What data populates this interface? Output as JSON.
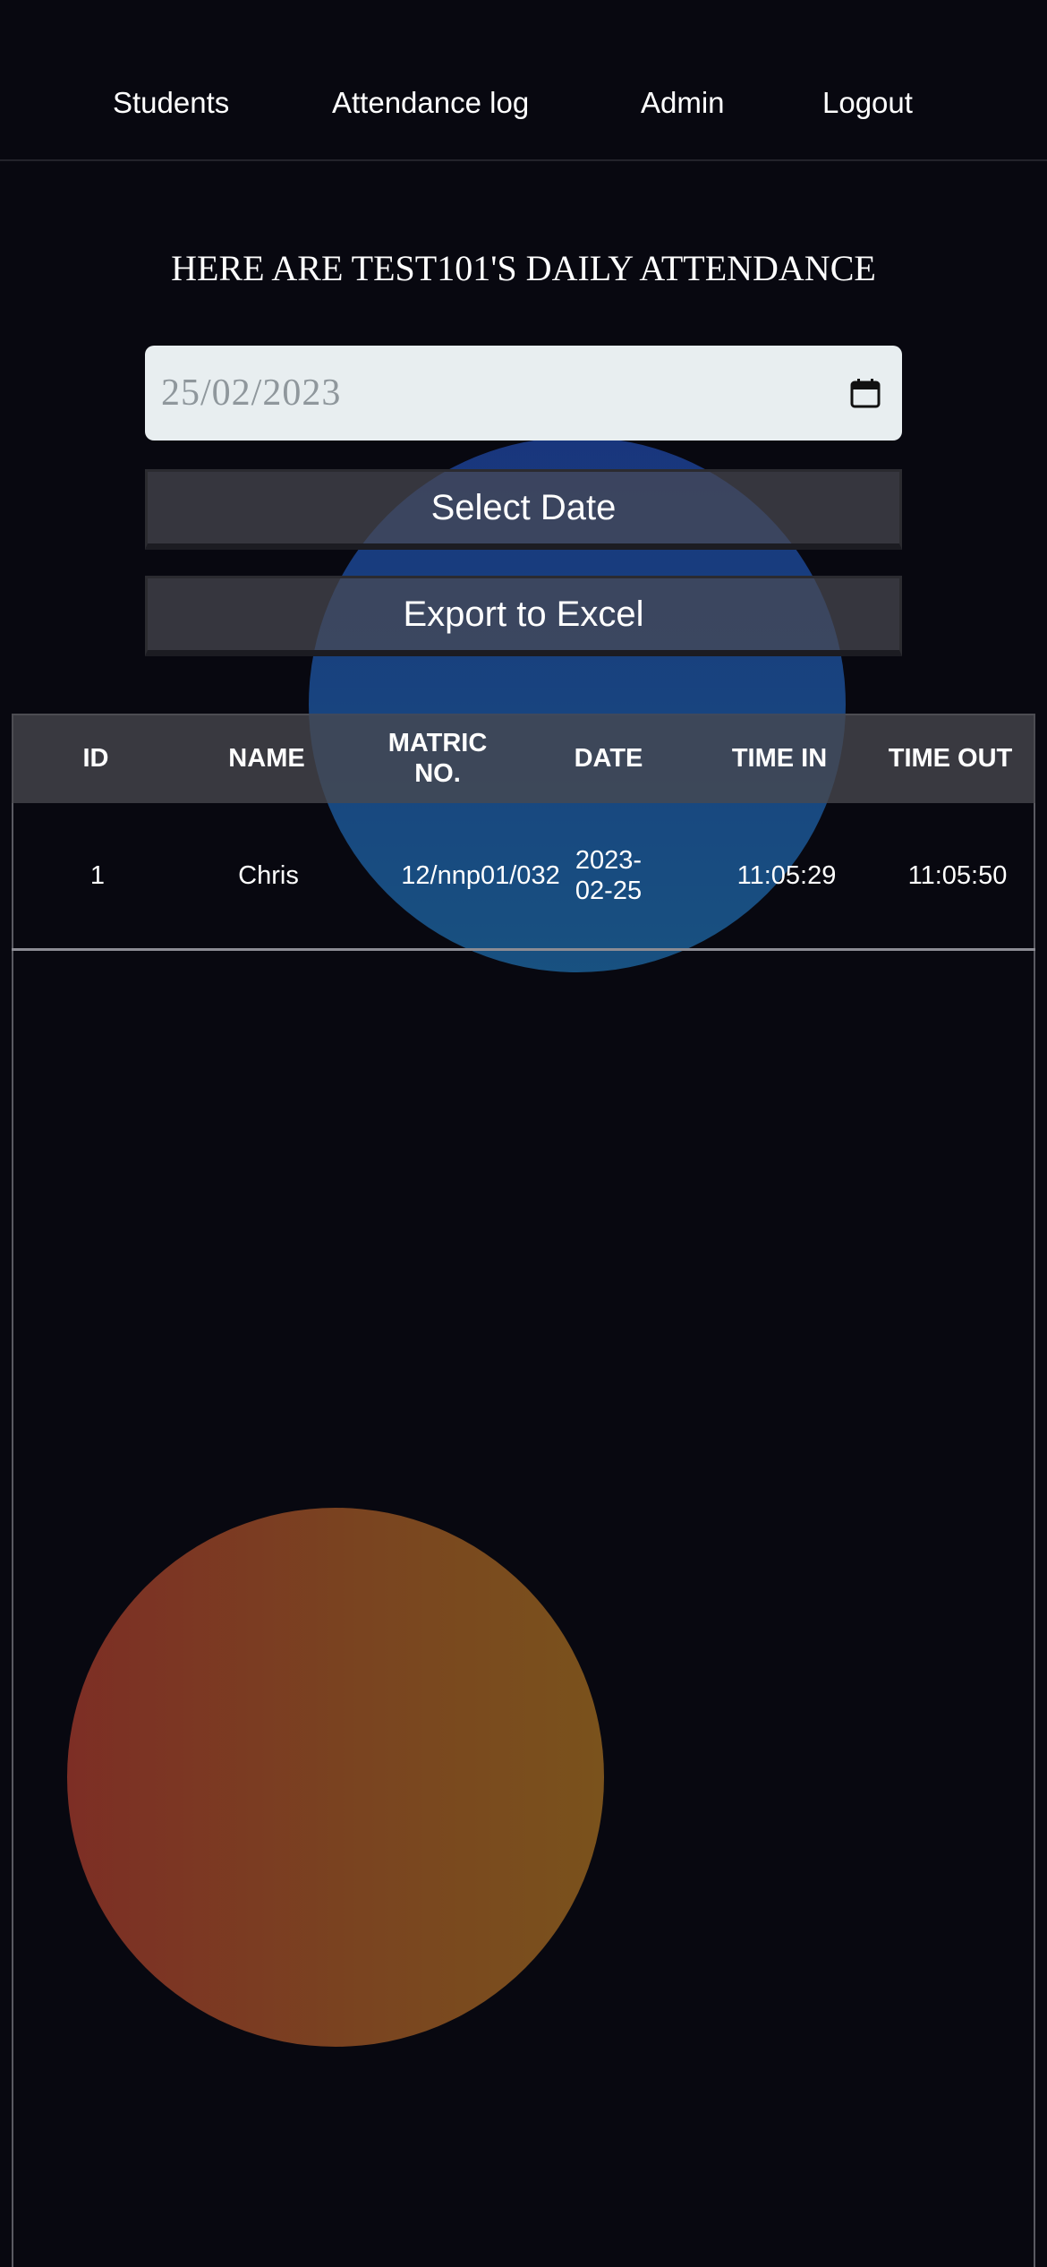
{
  "nav": {
    "items": [
      "Students",
      "Attendance log",
      "Admin",
      "Logout"
    ]
  },
  "page": {
    "title": "HERE ARE TEST101'S DAILY ATTENDANCE"
  },
  "date_picker": {
    "value": "25/02/2023",
    "icon": "calendar-icon"
  },
  "actions": {
    "select_date_label": "Select Date",
    "export_label": "Export to Excel"
  },
  "table": {
    "headers": [
      "ID",
      "NAME",
      "MATRIC\nNO.",
      "DATE",
      "TIME IN",
      "TIME OUT"
    ],
    "rows": [
      {
        "id": "1",
        "name": "Chris",
        "matric_no": "12/nnp01/032",
        "date": "2023-\n02-25",
        "time_in": "11:05:29",
        "time_out": "11:05:50"
      }
    ]
  },
  "colors": {
    "background": "#080810",
    "blue_blob": "#1b4a8e",
    "orange_blob": "#7a441f",
    "input_bg": "#e8eef0"
  }
}
